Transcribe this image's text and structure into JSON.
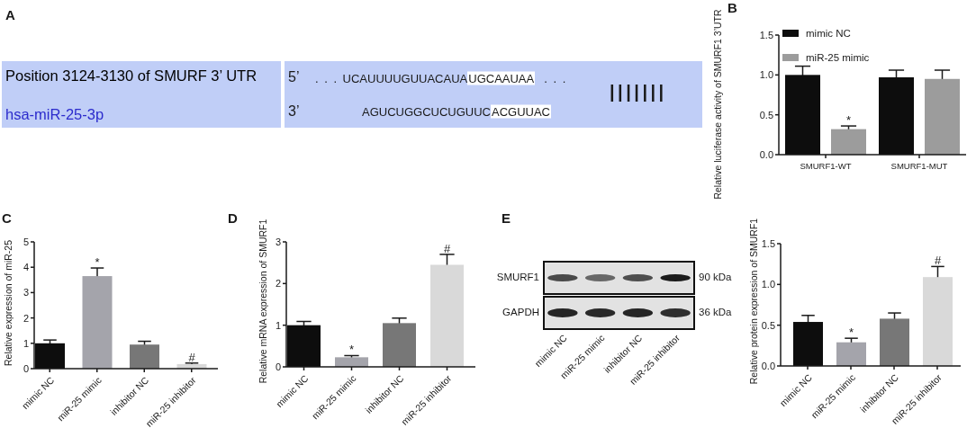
{
  "chart_data": [
    {
      "type": "other",
      "title": "A",
      "categories": [
        "Position 3124-3130 of SMURF 3’ UTR",
        "hsa-miR-25-3p"
      ],
      "colors": [
        "#000000",
        "#2b2bcc"
      ],
      "color": "#c0cef7",
      "annotations": [
        "5’",
        ". . .",
        "UCAUUUUGUUACAUA",
        "UGCAAUAA",
        ". . .",
        "3’",
        "AGUCUGGCUCUGUUC",
        "ACGUUAC",
        "|||||||"
      ]
    },
    {
      "type": "bar",
      "title": "B",
      "ylabel": "Relative luciferase activity of SMURF1 3’UTR",
      "categories": [
        "SMURF1-WT",
        "SMURF1-MUT"
      ],
      "series": [
        {
          "name": "mimic NC",
          "color": "#0d0d0d",
          "values": [
            1.0,
            0.97
          ],
          "errors": [
            0.11,
            0.09
          ]
        },
        {
          "name": "miR-25 mimic",
          "color": "#9c9c9c",
          "values": [
            0.32,
            0.95
          ],
          "errors": [
            0.04,
            0.11
          ],
          "value_labels": [
            "*",
            null
          ]
        }
      ],
      "ylim": [
        0,
        1.5
      ],
      "yticks": [
        {
          "value": 0,
          "label": "0.0"
        },
        {
          "value": 0.5,
          "label": "0.5"
        },
        {
          "value": 1,
          "label": "1.0"
        },
        {
          "value": 1.5,
          "label": "1.5"
        }
      ],
      "legend": "top left"
    },
    {
      "type": "bar",
      "title": "C",
      "ylabel": "Relative expression of miR-25",
      "categories": [
        "mimic NC",
        "miR-25 mimic",
        "inhibitor NC",
        "miR-25 inhibitor"
      ],
      "values": [
        1.0,
        3.65,
        0.95,
        0.18
      ],
      "errors": [
        0.13,
        0.32,
        0.13,
        0.04
      ],
      "value_labels": [
        null,
        "*",
        null,
        "#"
      ],
      "colors": [
        "#0d0d0d",
        "#a4a4ab",
        "#777777",
        "#d9d9d9"
      ],
      "ylim": [
        0,
        5
      ],
      "yticks": [
        0,
        1,
        2,
        3,
        4,
        5
      ]
    },
    {
      "type": "bar",
      "title": "D",
      "ylabel": "Relative mRNA expression of SMURF1",
      "categories": [
        "mimic NC",
        "miR-25 mimic",
        "inhibitor NC",
        "miR-25 inhibitor"
      ],
      "values": [
        1.0,
        0.23,
        1.05,
        2.45
      ],
      "errors": [
        0.09,
        0.04,
        0.12,
        0.25
      ],
      "value_labels": [
        null,
        "*",
        null,
        "#"
      ],
      "colors": [
        "#0d0d0d",
        "#a4a4ab",
        "#777777",
        "#d9d9d9"
      ],
      "ylim": [
        0,
        3
      ],
      "yticks": [
        0,
        1,
        2,
        3
      ]
    },
    {
      "type": "other",
      "title": "E",
      "categories": [
        "mimic NC",
        "miR-25 mimic",
        "inhibitor NC",
        "miR-25 inhibitor"
      ],
      "annotations": [
        "SMURF1",
        "GAPDH",
        "90 kDa",
        "36 kDa"
      ]
    },
    {
      "type": "bar",
      "ylabel": "Relative protein expression of SMURF1",
      "categories": [
        "mimic NC",
        "miR-25 mimic",
        "inhibitor NC",
        "miR-25 inhibitor"
      ],
      "values": [
        0.54,
        0.29,
        0.58,
        1.09
      ],
      "errors": [
        0.08,
        0.05,
        0.07,
        0.13
      ],
      "value_labels": [
        null,
        "*",
        null,
        "#"
      ],
      "colors": [
        "#0d0d0d",
        "#a4a4ab",
        "#777777",
        "#d9d9d9"
      ],
      "ylim": [
        0,
        1.5
      ],
      "yticks": [
        {
          "value": 0,
          "label": "0.0"
        },
        {
          "value": 0.5,
          "label": "0.5"
        },
        {
          "value": 1,
          "label": "1.0"
        },
        {
          "value": 1.5,
          "label": "1.5"
        }
      ]
    }
  ]
}
